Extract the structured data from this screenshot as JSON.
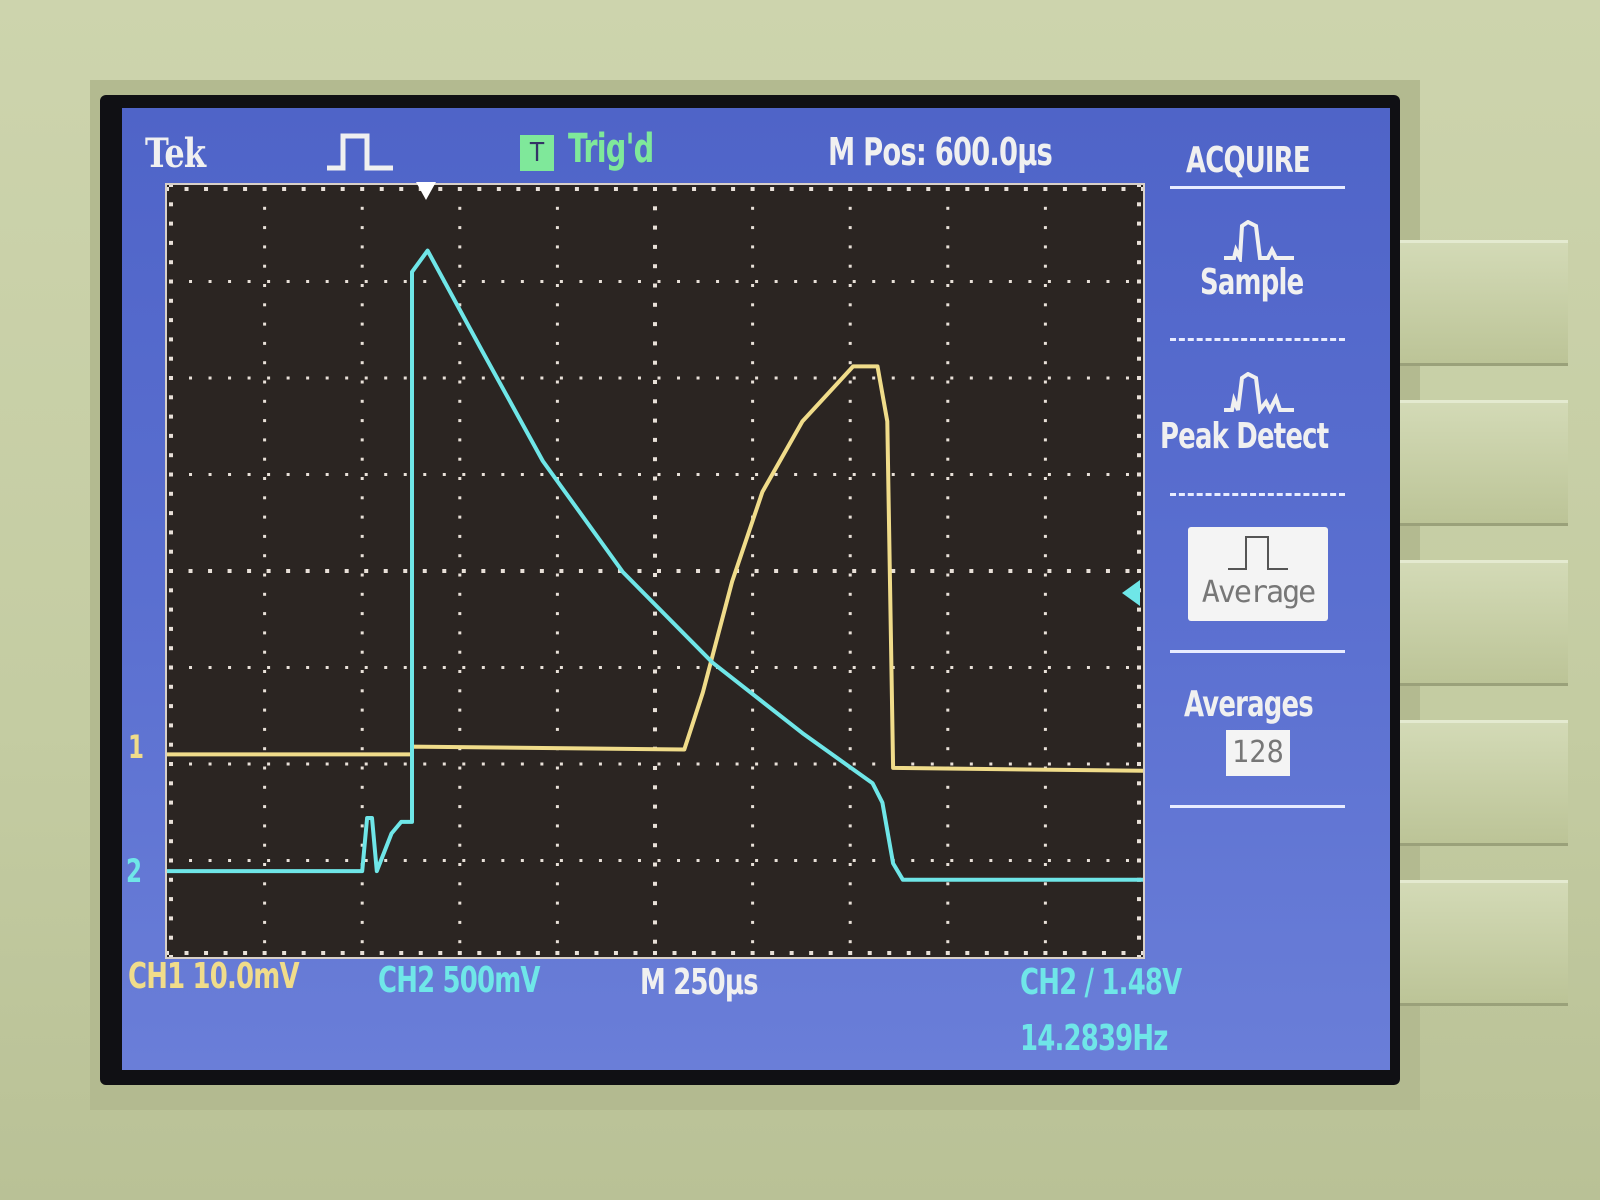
{
  "header": {
    "brand": "Tek",
    "acquire_state_icon": "run-pulse-icon",
    "trigger_badge": "T",
    "trigger_status": "Trig'd",
    "main_position": "M Pos: 600.0µs"
  },
  "menu": {
    "title": "ACQUIRE",
    "items": [
      {
        "label": "Sample",
        "icon": "sample-pulse-icon",
        "selected": false
      },
      {
        "label": "Peak Detect",
        "icon": "peak-detect-pulse-icon",
        "selected": false
      },
      {
        "label": "Average",
        "icon": "average-pulse-icon",
        "selected": true
      }
    ],
    "averages_label": "Averages",
    "averages_value": "128"
  },
  "footer": {
    "ch1_scale": "CH1  10.0mV",
    "ch2_scale": "CH2  500mV",
    "timebase": "M 250µs",
    "trigger_setting": "CH2 ∕ 1.48V",
    "frequency": "14.2839Hz"
  },
  "markers": {
    "ch1": "1",
    "ch2": "2"
  },
  "colors": {
    "ch1": "#f0dc8a",
    "ch2": "#6fe6e8",
    "screen": "#5266cc",
    "graticule": "#2b2522"
  },
  "chart_data": {
    "type": "line",
    "grid": {
      "x_divisions": 10,
      "y_divisions": 8
    },
    "xlabel": "",
    "ylabel": "",
    "series": [
      {
        "name": "CH1",
        "color": "#f0dc8a",
        "x": [
          0,
          2.51,
          2.51,
          5.3,
          5.49,
          5.79,
          6.1,
          6.51,
          7.03,
          7.28,
          7.38,
          7.44,
          10
        ],
        "y": [
          5.9,
          5.9,
          5.82,
          5.85,
          5.26,
          4.11,
          3.18,
          2.45,
          1.88,
          1.88,
          2.45,
          6.04,
          6.07
        ]
      },
      {
        "name": "CH2",
        "color": "#6fe6e8",
        "x": [
          0,
          2.0,
          2.05,
          2.1,
          2.15,
          2.3,
          2.4,
          2.51,
          2.51,
          2.67,
          3.23,
          3.85,
          4.67,
          5.59,
          6.51,
          7.23,
          7.33,
          7.44,
          7.54,
          10
        ],
        "y": [
          7.11,
          7.11,
          6.56,
          6.56,
          7.11,
          6.72,
          6.6,
          6.6,
          0.9,
          0.68,
          1.72,
          2.86,
          4.01,
          4.95,
          5.68,
          6.2,
          6.4,
          7.03,
          7.2,
          7.2
        ]
      }
    ]
  }
}
